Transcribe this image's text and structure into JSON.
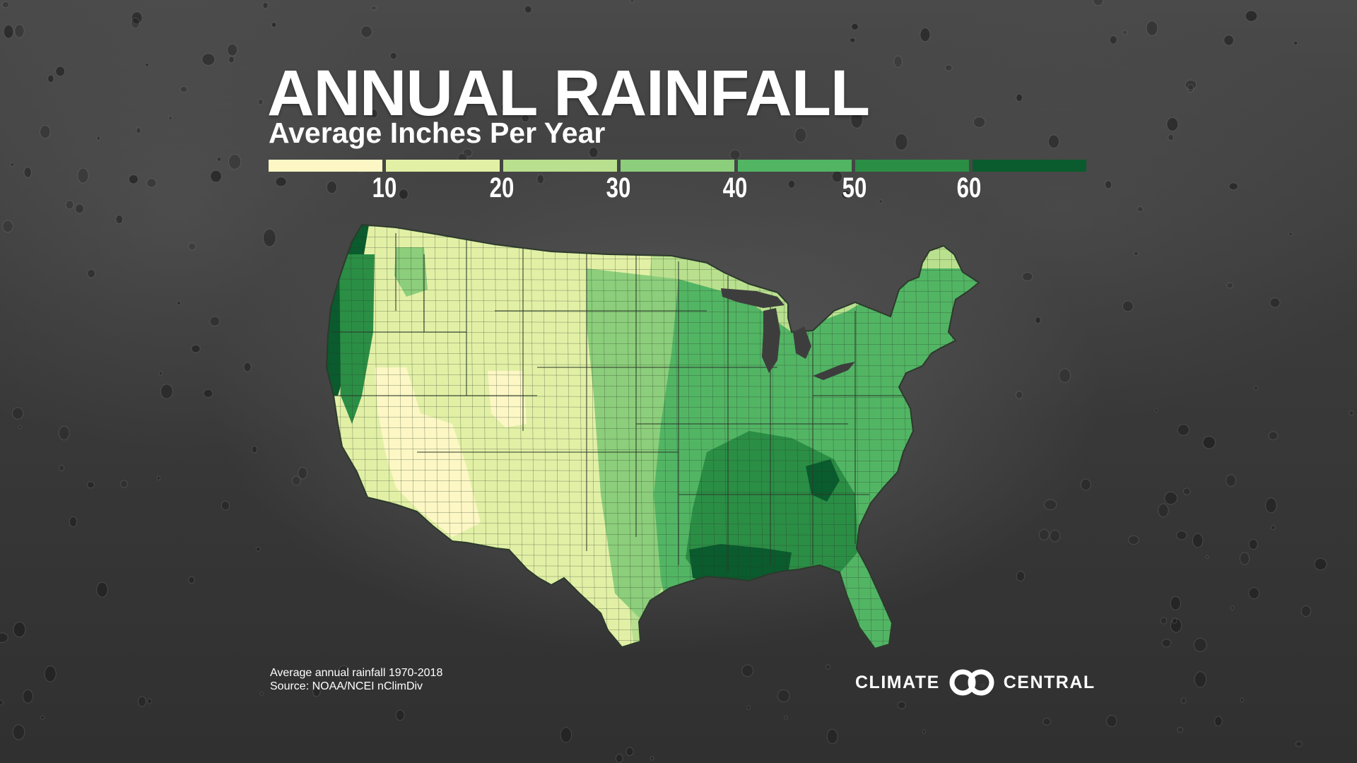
{
  "title": "ANNUAL RAINFALL",
  "subtitle": "Average Inches Per Year",
  "legend": {
    "ticks": [
      "10",
      "20",
      "30",
      "40",
      "50",
      "60"
    ],
    "colors": [
      "#fcf7c4",
      "#e2f0a6",
      "#b9e08e",
      "#8cce7b",
      "#52b564",
      "#2b8e45",
      "#0a5b2d"
    ]
  },
  "map": {
    "region": "Contiguous United States",
    "colors": {
      "driest": "#fcf7c4",
      "dry": "#e2f0a6",
      "moderate": "#b9e08e",
      "mid": "#8cce7b",
      "wet": "#52b564",
      "wetter": "#2b8e45",
      "wettest": "#0a5b2d",
      "border": "#2c3a2c"
    }
  },
  "footnote": {
    "line1": "Average annual rainfall 1970-2018",
    "line2": "Source: NOAA/NCEI nClimDiv"
  },
  "logo": {
    "left": "CLIMATE",
    "right": "CENTRAL"
  }
}
